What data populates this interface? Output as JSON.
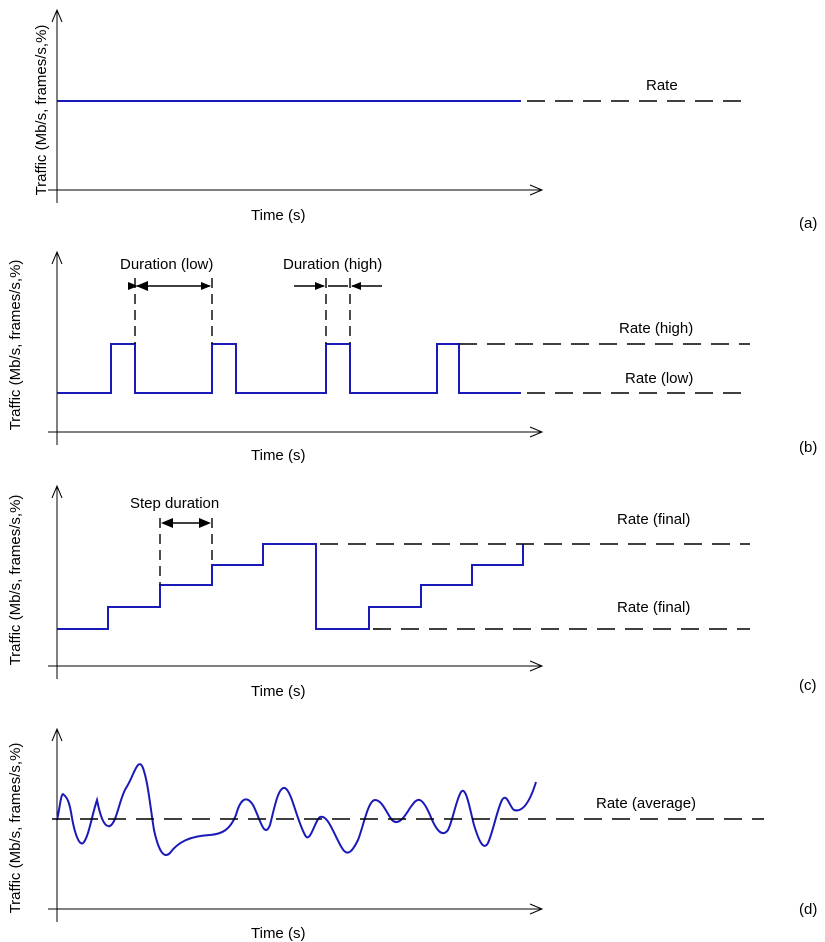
{
  "panels": [
    {
      "id": "a",
      "tag": "(a)",
      "ylabel": "Traffic (Mb/s, frames/s,%)",
      "xlabel": "Time (s)",
      "rate_labels": [
        "Rate"
      ]
    },
    {
      "id": "b",
      "tag": "(b)",
      "ylabel": "Traffic (Mb/s, frames/s,%)",
      "xlabel": "Time (s)",
      "rate_labels": [
        "Rate (high)",
        "Rate (low)"
      ],
      "duration_labels": [
        "Duration (low)",
        "Duration (high)"
      ]
    },
    {
      "id": "c",
      "tag": "(c)",
      "ylabel": "Traffic (Mb/s, frames/s,%)",
      "xlabel": "Time (s)",
      "rate_labels": [
        "Rate (final)",
        "Rate (final)"
      ],
      "duration_labels": [
        "Step duration"
      ]
    },
    {
      "id": "d",
      "tag": "(d)",
      "ylabel": "Traffic (Mb/s, frames/s,%)",
      "xlabel": "Time (s)",
      "rate_labels": [
        "Rate (average)"
      ]
    }
  ],
  "colors": {
    "signal": "#1a1ab8",
    "axis": "#000000"
  }
}
